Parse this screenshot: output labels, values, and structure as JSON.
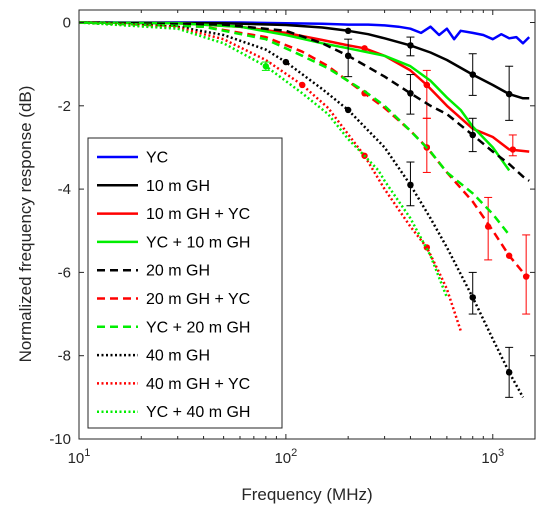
{
  "chart_data": {
    "type": "line",
    "xlabel": "Frequency (MHz)",
    "ylabel": "Normalized frequency response (dB)",
    "xscale": "log",
    "xlim": [
      10,
      1600
    ],
    "ylim": [
      -10,
      0.3
    ],
    "xticks": [
      {
        "value": 10,
        "base": "10",
        "exp": "1"
      },
      {
        "value": 100,
        "base": "10",
        "exp": "2"
      },
      {
        "value": 1000,
        "base": "10",
        "exp": "3"
      }
    ],
    "yticks": [
      {
        "value": 0,
        "label": "0"
      },
      {
        "value": -2,
        "label": "-2"
      },
      {
        "value": -4,
        "label": "-4"
      },
      {
        "value": -6,
        "label": "-6"
      },
      {
        "value": -8,
        "label": "-8"
      },
      {
        "value": -10,
        "label": "-10"
      }
    ],
    "grid": false,
    "legend_position": "bottom-left",
    "series": [
      {
        "name": "YC",
        "color": "#0000ff",
        "dash": "solid",
        "x": [
          10,
          30,
          60,
          100,
          150,
          200,
          250,
          300,
          350,
          400,
          450,
          500,
          550,
          600,
          650,
          700,
          800,
          900,
          1000,
          1100,
          1200,
          1300,
          1400,
          1500
        ],
        "y": [
          0,
          0,
          0,
          -0.02,
          -0.03,
          -0.05,
          -0.05,
          -0.07,
          -0.1,
          -0.15,
          -0.25,
          -0.1,
          -0.3,
          -0.15,
          -0.4,
          -0.2,
          -0.25,
          -0.3,
          -0.4,
          -0.28,
          -0.38,
          -0.35,
          -0.5,
          -0.35
        ]
      },
      {
        "name": "10 m GH",
        "color": "#000000",
        "dash": "solid",
        "x": [
          10,
          50,
          100,
          150,
          200,
          250,
          300,
          400,
          500,
          600,
          800,
          1000,
          1200,
          1400,
          1500
        ],
        "y": [
          0,
          -0.02,
          -0.06,
          -0.12,
          -0.2,
          -0.28,
          -0.38,
          -0.55,
          -0.72,
          -0.9,
          -1.25,
          -1.5,
          -1.72,
          -1.82,
          -1.82
        ],
        "markers": [
          200,
          400,
          800,
          1200
        ],
        "errors": [
          {
            "x": 400,
            "y": -0.55,
            "lo": -0.8,
            "hi": -0.35
          },
          {
            "x": 800,
            "y": -1.25,
            "lo": -1.75,
            "hi": -0.75
          },
          {
            "x": 1200,
            "y": -1.72,
            "lo": -2.35,
            "hi": -1.05
          }
        ]
      },
      {
        "name": "10 m GH + YC",
        "color": "#ff0000",
        "dash": "solid",
        "x": [
          10,
          30,
          60,
          100,
          150,
          200,
          240,
          300,
          400,
          480,
          600,
          800,
          1000,
          1200,
          1500
        ],
        "y": [
          0,
          -0.02,
          -0.1,
          -0.25,
          -0.42,
          -0.55,
          -0.62,
          -0.8,
          -1.15,
          -1.5,
          -2.0,
          -2.55,
          -2.75,
          -3.05,
          -3.1
        ],
        "markers": [
          240,
          480
        ],
        "errors": [
          {
            "x": 480,
            "y": -1.5,
            "lo": -2.3,
            "hi": -1.15
          },
          {
            "x": 1250,
            "y": -3.05,
            "lo": -3.2,
            "hi": -2.7
          }
        ]
      },
      {
        "name": "YC + 10 m GH",
        "color": "#00ee00",
        "dash": "solid",
        "x": [
          10,
          30,
          60,
          100,
          150,
          200,
          300,
          400,
          500,
          600,
          700,
          800,
          1000,
          1200
        ],
        "y": [
          0,
          -0.02,
          -0.1,
          -0.3,
          -0.5,
          -0.62,
          -0.8,
          -1.05,
          -1.4,
          -1.8,
          -2.1,
          -2.5,
          -3.0,
          -3.55
        ]
      },
      {
        "name": "20 m GH",
        "color": "#000000",
        "dash": "dash",
        "x": [
          10,
          50,
          100,
          150,
          200,
          300,
          400,
          500,
          600,
          800,
          1000,
          1200,
          1400,
          1500
        ],
        "y": [
          0,
          -0.05,
          -0.2,
          -0.5,
          -0.8,
          -1.3,
          -1.7,
          -2.0,
          -2.2,
          -2.7,
          -3.1,
          -3.4,
          -3.7,
          -3.8
        ],
        "markers": [
          200,
          400,
          800
        ],
        "errors": [
          {
            "x": 200,
            "y": -0.8,
            "lo": -1.3,
            "hi": -0.4
          },
          {
            "x": 400,
            "y": -1.7,
            "lo": -2.2,
            "hi": -1.25
          },
          {
            "x": 800,
            "y": -2.7,
            "lo": -3.1,
            "hi": -2.3
          }
        ]
      },
      {
        "name": "20 m GH + YC",
        "color": "#ff0000",
        "dash": "dash",
        "x": [
          10,
          40,
          80,
          120,
          160,
          240,
          300,
          400,
          480,
          600,
          800,
          1000,
          1200,
          1400,
          1500
        ],
        "y": [
          0,
          -0.1,
          -0.35,
          -0.7,
          -1.05,
          -1.7,
          -2.05,
          -2.6,
          -3.0,
          -3.6,
          -4.3,
          -5.0,
          -5.6,
          -6.0,
          -6.1
        ],
        "markers": [
          240,
          480,
          1200
        ],
        "errors": [
          {
            "x": 480,
            "y": -3.0,
            "lo": -3.6,
            "hi": -2.3
          },
          {
            "x": 950,
            "y": -4.9,
            "lo": -5.7,
            "hi": -4.2
          },
          {
            "x": 1450,
            "y": -6.1,
            "lo": -7.0,
            "hi": -5.1
          }
        ]
      },
      {
        "name": "YC + 20 m GH",
        "color": "#00ee00",
        "dash": "dash",
        "x": [
          10,
          40,
          80,
          120,
          160,
          240,
          300,
          400,
          500,
          600,
          800,
          1000,
          1200
        ],
        "y": [
          0,
          -0.1,
          -0.4,
          -0.8,
          -1.1,
          -1.65,
          -2.0,
          -2.6,
          -3.1,
          -3.6,
          -4.1,
          -4.6,
          -5.1
        ]
      },
      {
        "name": "40 m GH",
        "color": "#000000",
        "dash": "dot",
        "x": [
          10,
          30,
          50,
          80,
          100,
          150,
          200,
          300,
          400,
          500,
          600,
          800,
          1000,
          1200,
          1400
        ],
        "y": [
          0,
          -0.1,
          -0.3,
          -0.65,
          -0.95,
          -1.6,
          -2.1,
          -3.0,
          -3.9,
          -4.7,
          -5.4,
          -6.6,
          -7.6,
          -8.4,
          -9.0
        ],
        "markers": [
          100,
          200,
          400,
          800,
          1200
        ],
        "errors": [
          {
            "x": 400,
            "y": -3.9,
            "lo": -4.4,
            "hi": -3.35
          },
          {
            "x": 800,
            "y": -6.6,
            "lo": -7.0,
            "hi": -6.0
          },
          {
            "x": 1200,
            "y": -8.4,
            "lo": -9.0,
            "hi": -7.8
          }
        ]
      },
      {
        "name": "40 m GH + YC",
        "color": "#ff0000",
        "dash": "dot",
        "x": [
          10,
          30,
          50,
          80,
          120,
          160,
          240,
          300,
          400,
          480,
          550,
          600,
          700
        ],
        "y": [
          0,
          -0.12,
          -0.4,
          -0.9,
          -1.5,
          -2.05,
          -3.2,
          -4.0,
          -4.9,
          -5.4,
          -6.0,
          -6.4,
          -7.4
        ],
        "markers": [
          120,
          240,
          480
        ]
      },
      {
        "name": "YC + 40 m GH",
        "color": "#00ee00",
        "dash": "dot",
        "x": [
          10,
          30,
          50,
          80,
          120,
          160,
          200,
          240,
          280,
          300,
          400,
          500,
          600
        ],
        "y": [
          0,
          -0.15,
          -0.5,
          -1.05,
          -1.7,
          -2.2,
          -2.8,
          -3.2,
          -3.55,
          -3.8,
          -4.7,
          -5.6,
          -6.6
        ],
        "errors": [
          {
            "x": 80,
            "y": -1.05,
            "lo": -1.15,
            "hi": -0.95
          }
        ]
      }
    ]
  }
}
